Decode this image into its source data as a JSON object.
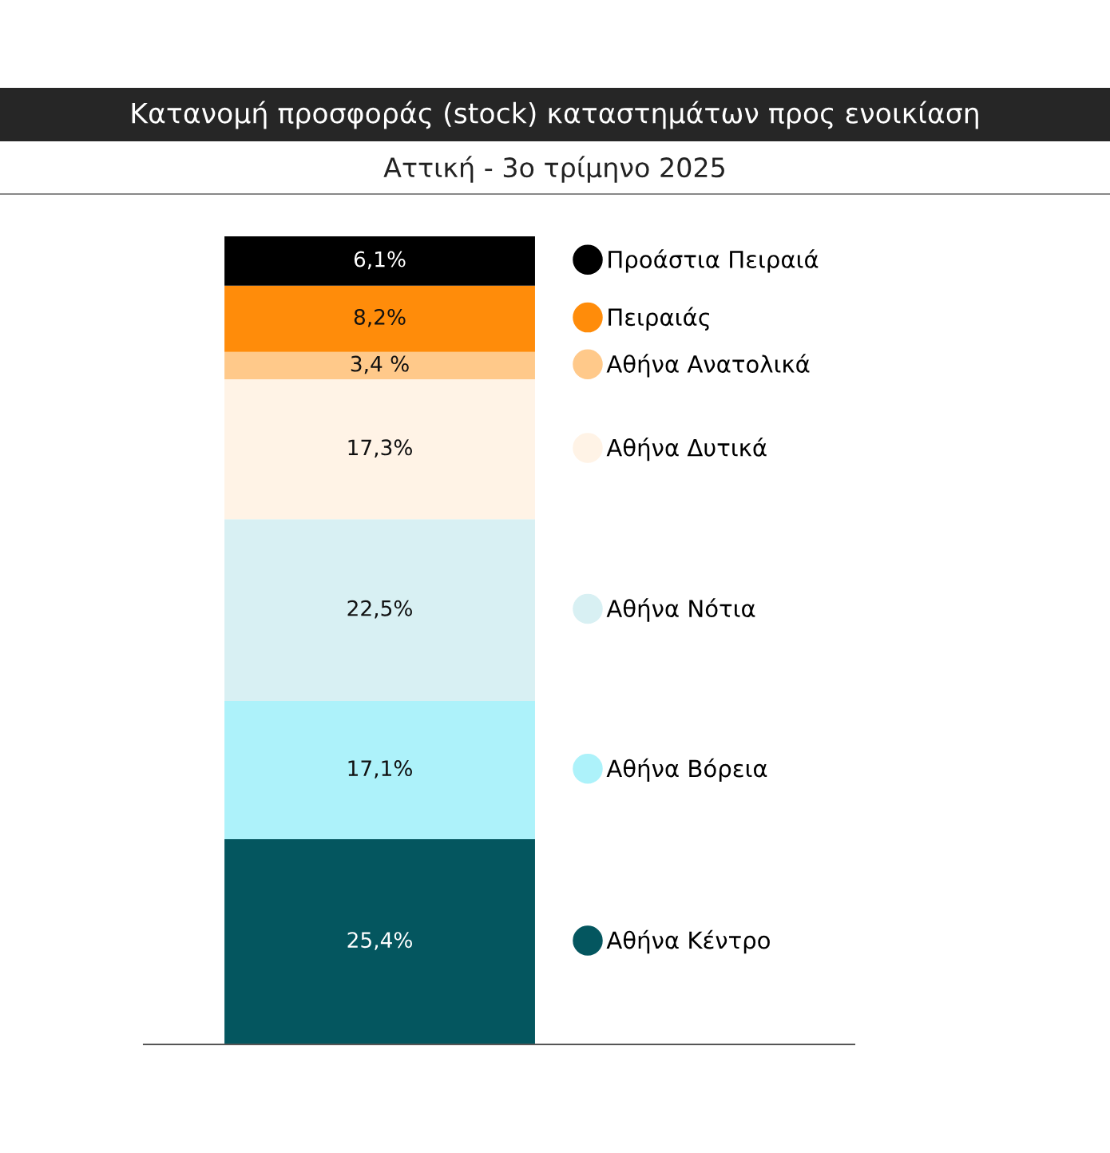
{
  "chart_data": {
    "type": "bar",
    "title": "Κατανομή προσφοράς (stock) καταστημάτων προς ενοικίαση",
    "subtitle": "Αττική - 3ο τρίμηνο 2025",
    "categories": [
      null
    ],
    "stacked": true,
    "legend": "right",
    "series": [
      {
        "name": "Αθήνα Κέντρο",
        "color": "#04565f",
        "values": [
          25.4
        ],
        "value_labels": [
          "25,4%"
        ]
      },
      {
        "name": "Αθήνα Βόρεια",
        "color": "#adf2fa",
        "values": [
          17.1
        ],
        "value_labels": [
          "17,1%"
        ]
      },
      {
        "name": "Αθήνα Νότια",
        "color": "#d8f0f3",
        "values": [
          22.5
        ],
        "value_labels": [
          "22,5%"
        ]
      },
      {
        "name": "Αθήνα Δυτικά",
        "color": "#fff3e6",
        "values": [
          17.3
        ],
        "value_labels": [
          "17,3%"
        ]
      },
      {
        "name": "Αθήνα Ανατολικά",
        "color": "#ffc98a",
        "values": [
          3.4
        ],
        "value_labels": [
          "3,4 %"
        ]
      },
      {
        "name": "Πειραιάς",
        "color": "#ff8c0a",
        "values": [
          8.2
        ],
        "value_labels": [
          "8,2%"
        ]
      },
      {
        "name": "Προάστια Πειραιά",
        "color": "#000000",
        "values": [
          6.1
        ],
        "value_labels": [
          "6,1%"
        ]
      }
    ]
  }
}
